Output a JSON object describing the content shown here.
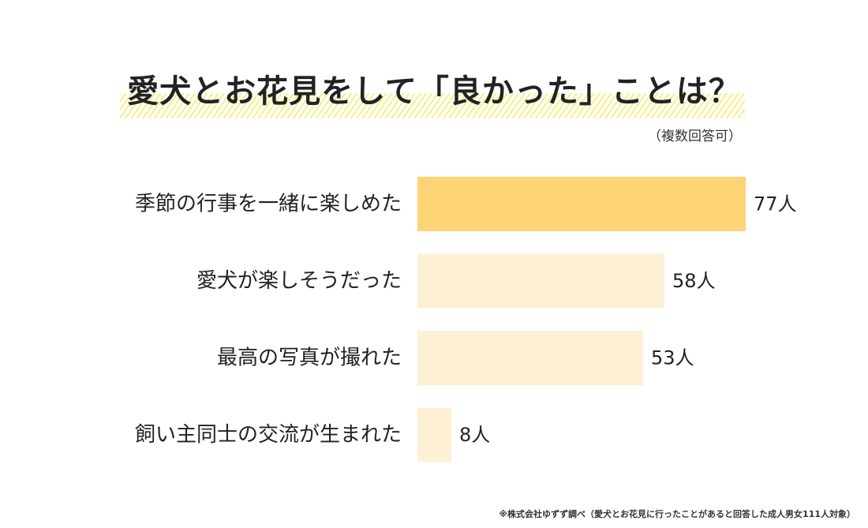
{
  "title": "愛犬とお花見をして「良かった」ことは？",
  "subtitle": "（複数回答可）",
  "footnote": "※株式会社ゆずず調べ（愛犬とお花見に行ったことがあると回答した成人男女111人対象）",
  "colors": {
    "highlight_bar": "#fdd475",
    "bar": "#fdf0d5",
    "title_stripe": "#f6ef86",
    "text": "#222222"
  },
  "chart_data": {
    "type": "bar",
    "orientation": "horizontal",
    "categories": [
      "季節の行事を一緒に楽しめた",
      "愛犬が楽しそうだった",
      "最高の写真が撮れた",
      "飼い主同士の交流が生まれた"
    ],
    "values": [
      77,
      58,
      53,
      8
    ],
    "value_labels": [
      "77人",
      "58人",
      "53人",
      "8人"
    ],
    "highlight_index": 0,
    "xlim": [
      0,
      77
    ],
    "grid": false
  }
}
